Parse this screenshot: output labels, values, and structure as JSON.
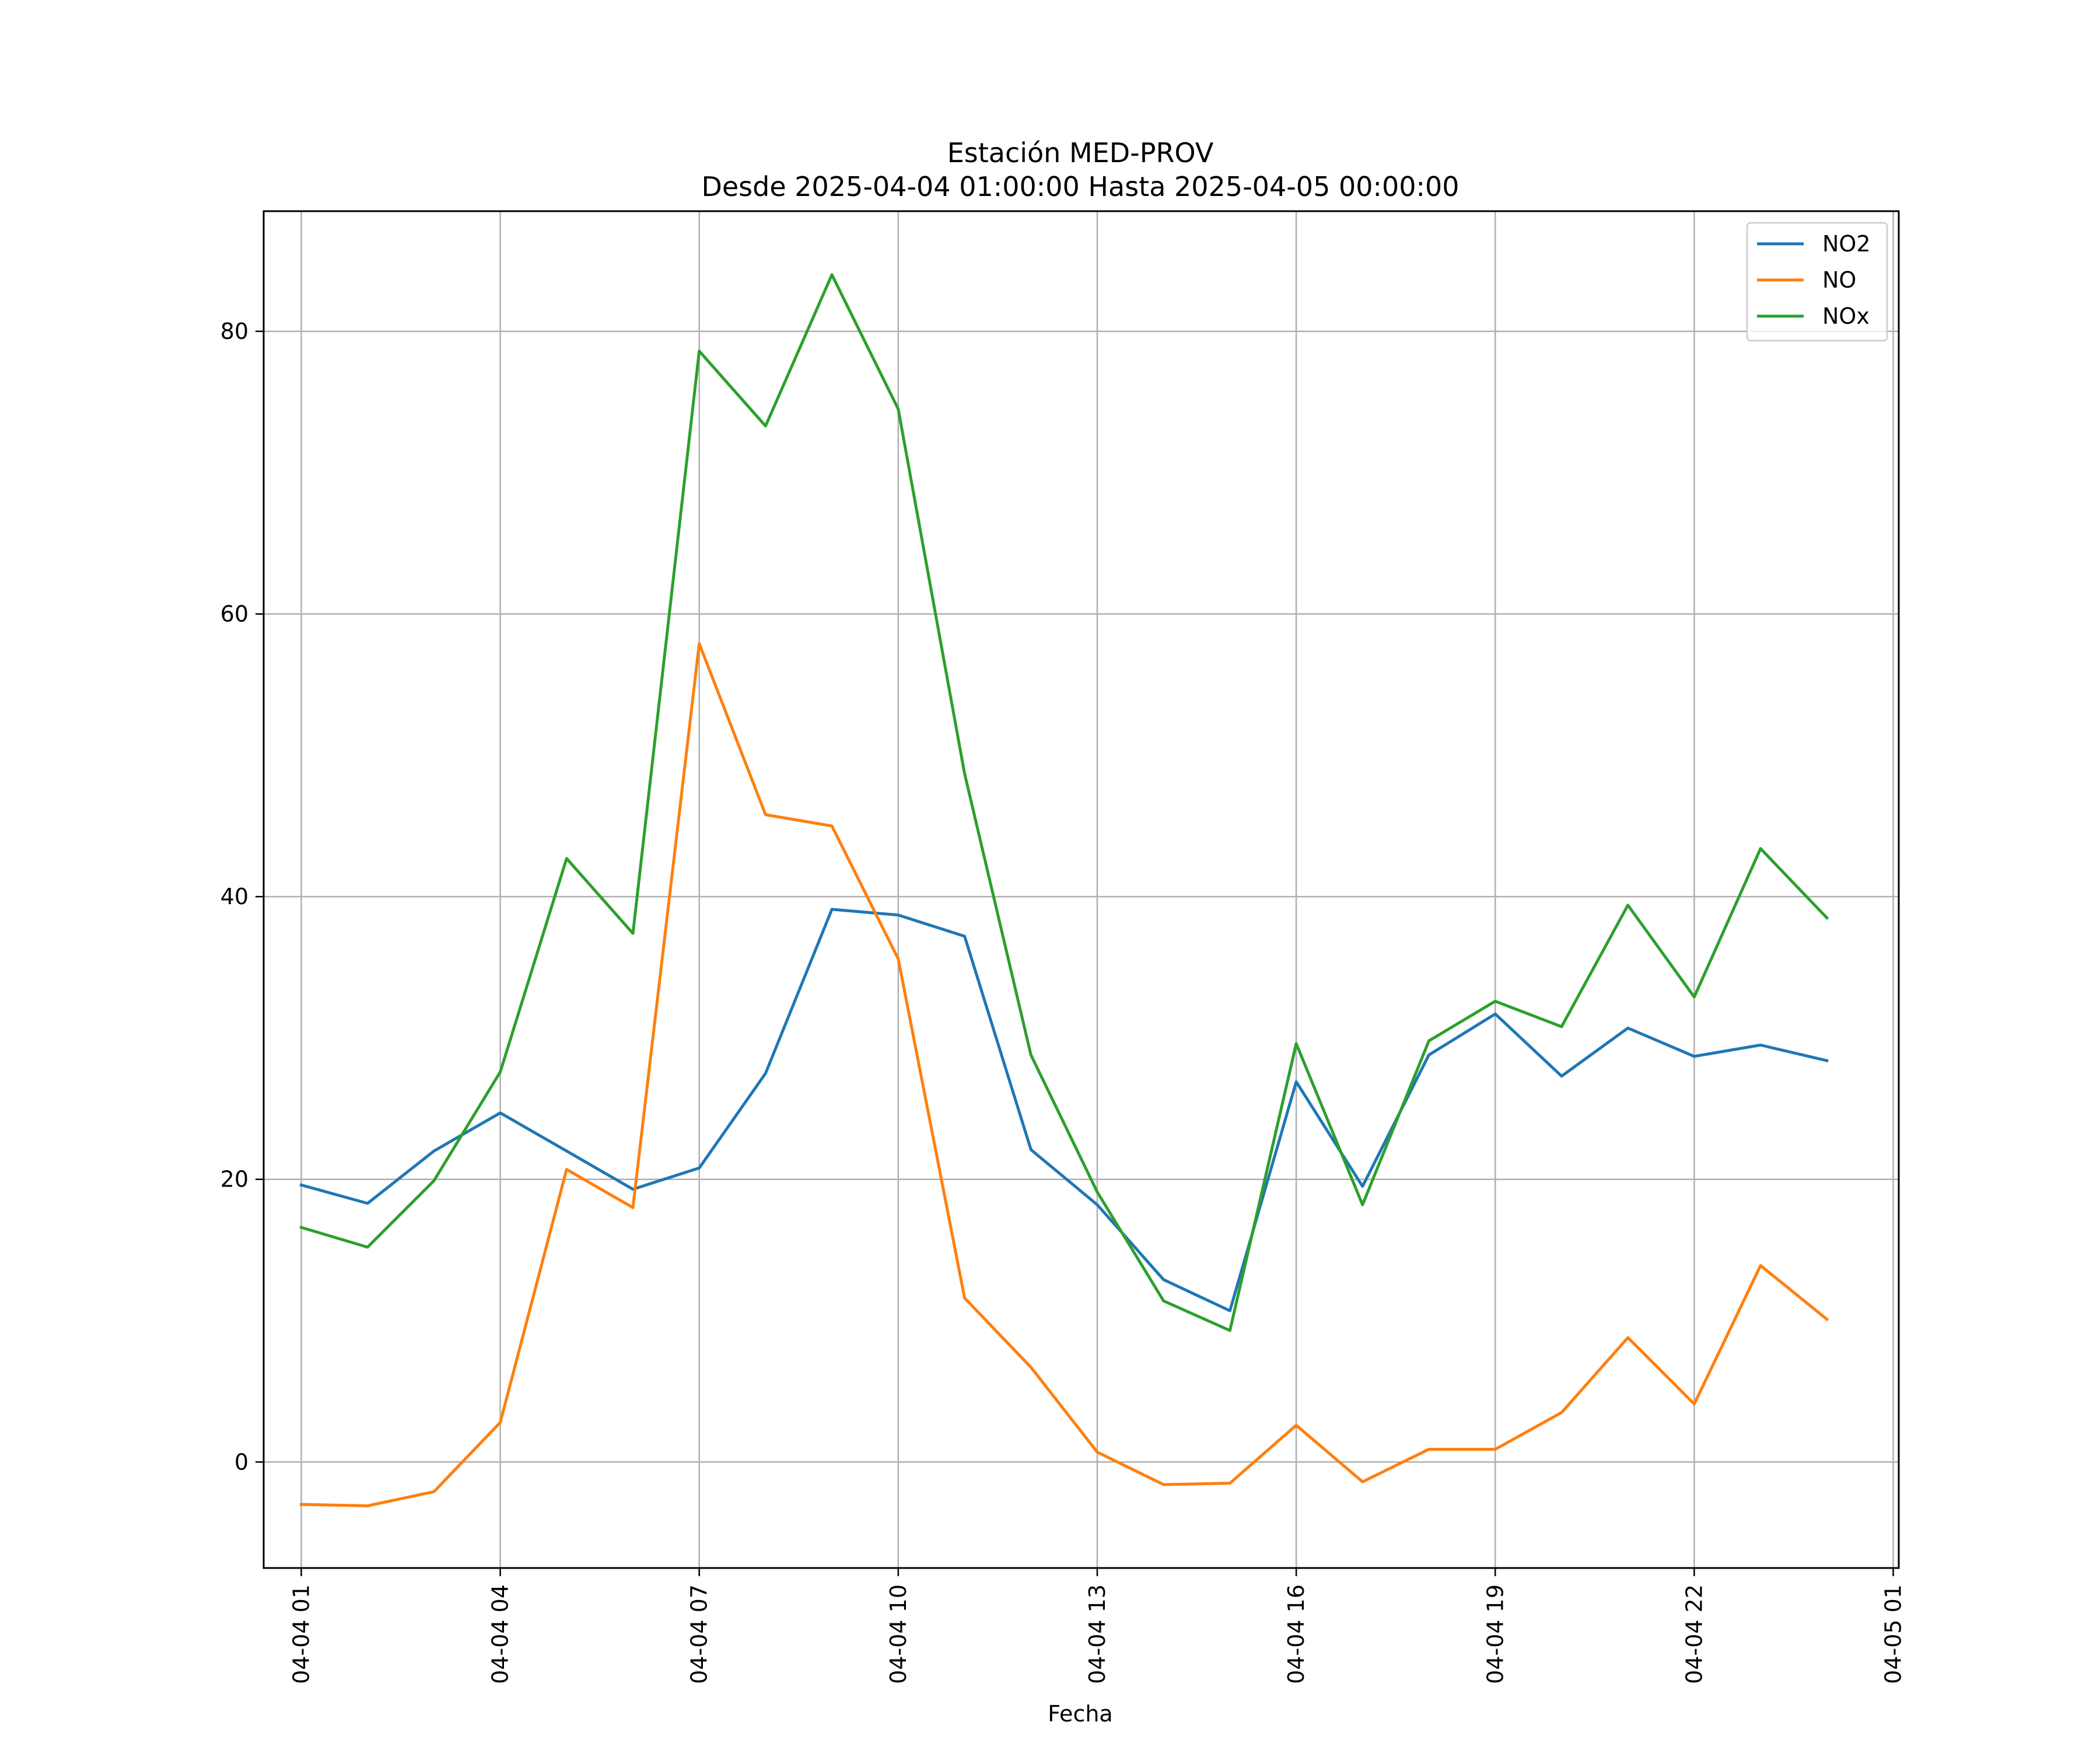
{
  "chart_data": {
    "type": "line",
    "title_line1": "Estación MED-PROV",
    "title_line2": "Desde 2025-04-04 01:00:00 Hasta 2025-04-05 00:00:00",
    "xlabel": "Fecha",
    "ylabel": "",
    "x": [
      "04-04 01",
      "04-04 02",
      "04-04 03",
      "04-04 04",
      "04-04 05",
      "04-04 06",
      "04-04 07",
      "04-04 08",
      "04-04 09",
      "04-04 10",
      "04-04 11",
      "04-04 12",
      "04-04 13",
      "04-04 14",
      "04-04 15",
      "04-04 16",
      "04-04 17",
      "04-04 18",
      "04-04 19",
      "04-04 20",
      "04-04 21",
      "04-04 22",
      "04-04 23",
      "04-05 00"
    ],
    "x_ticks": [
      "04-04 01",
      "04-04 04",
      "04-04 07",
      "04-04 10",
      "04-04 13",
      "04-04 16",
      "04-04 19",
      "04-04 22",
      "04-05 01"
    ],
    "xlim": [
      "04-04 00:26",
      "04-05 01:05"
    ],
    "y_ticks": [
      0,
      20,
      40,
      60,
      80
    ],
    "ylim": [
      -7.5,
      88.5
    ],
    "grid": true,
    "legend_position": "top-right",
    "series": [
      {
        "name": "NO2",
        "color": "#1f77b4",
        "values": [
          19.6,
          18.3,
          22.0,
          24.7,
          22.0,
          19.3,
          20.8,
          27.5,
          39.1,
          38.7,
          37.2,
          22.1,
          18.2,
          12.9,
          10.7,
          26.9,
          19.5,
          28.8,
          31.7,
          27.3,
          30.7,
          28.7,
          29.5,
          28.4
        ]
      },
      {
        "name": "NO",
        "color": "#ff7f0e",
        "values": [
          -3.0,
          -3.1,
          -2.1,
          2.8,
          20.7,
          18.0,
          57.9,
          45.8,
          45.0,
          35.6,
          11.6,
          6.7,
          0.7,
          -1.6,
          -1.5,
          2.6,
          -1.4,
          0.9,
          0.9,
          3.5,
          8.8,
          4.1,
          13.9,
          10.1
        ]
      },
      {
        "name": "NOx",
        "color": "#2ca02c",
        "values": [
          16.6,
          15.2,
          19.9,
          27.6,
          42.7,
          37.4,
          78.6,
          73.3,
          84.0,
          74.5,
          48.7,
          28.8,
          19.1,
          11.4,
          9.3,
          29.6,
          18.2,
          29.8,
          32.6,
          30.8,
          39.4,
          32.9,
          43.4,
          38.5
        ]
      }
    ]
  }
}
